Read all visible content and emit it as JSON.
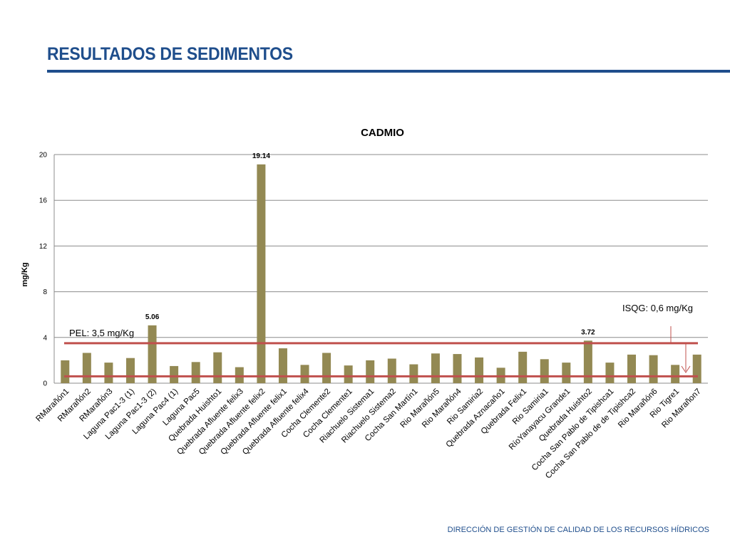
{
  "header": {
    "title": "RESULTADOS DE SEDIMENTOS"
  },
  "footer": {
    "text": "DIRECCIÓN DE GESTIÓN DE CALIDAD DE LOS RECURSOS HÍDRICOS"
  },
  "colors": {
    "bar": "#938953",
    "threshold_line": "#c0504d",
    "title": "#1f4e8c",
    "arrow": "#c0504d"
  },
  "chart_data": {
    "type": "bar",
    "title": "CADMIO",
    "ylabel": "mg/Kg",
    "ylim": [
      0,
      20
    ],
    "yticks": [
      0,
      4,
      8,
      12,
      16,
      20
    ],
    "grid": true,
    "categories": [
      "RMarañón1",
      "RMarañón2",
      "RMarañón3",
      "Laguna Pac1-3 (1)",
      "Laguna Pac1-3 (2)",
      "Laguna Pac4 (1)",
      "Laguna Pac5",
      "Quebrada Huishto1",
      "Quebrada Afluente felix3",
      "Quebrada Afluente felix2",
      "Quebrada Afluente felix1",
      "Quebrada Afluente felix4",
      "Cocha Clemente2",
      "Cocha Clemente1",
      "Riachuelo Sistema1",
      "Riachuelo Sistema2",
      "Cocha San Martín1",
      "Rio Marañón5",
      "Rio Marañón4",
      "Rio Samiria2",
      "Quebrada Aznacaño1",
      "Quebrada Felix1",
      "Rio Samiria1",
      "RíoYanayacu Grande1",
      "Quebrada Huishto2",
      "Cocha San Pablo de Tipishca1",
      "Cocha San Pablo de de Tipishca2",
      "Rio Marañón6",
      "Rio Tigre1",
      "Rio Marañon7"
    ],
    "values": [
      2.0,
      2.65,
      1.8,
      2.2,
      5.06,
      1.5,
      1.85,
      2.7,
      1.4,
      19.14,
      3.05,
      1.6,
      2.65,
      1.55,
      2.0,
      2.15,
      1.65,
      2.6,
      2.55,
      2.25,
      1.35,
      2.75,
      2.1,
      1.8,
      3.72,
      1.8,
      2.5,
      2.45,
      1.6,
      2.5
    ],
    "data_labels": [
      {
        "index": 4,
        "text": "5.06"
      },
      {
        "index": 9,
        "text": "19.14"
      },
      {
        "index": 24,
        "text": "3.72"
      }
    ],
    "thresholds": [
      {
        "value": 3.5,
        "label": "PEL: 3,5 mg/Kg"
      },
      {
        "value": 0.6,
        "label": "ISQG: 0,6 mg/Kg"
      }
    ]
  }
}
